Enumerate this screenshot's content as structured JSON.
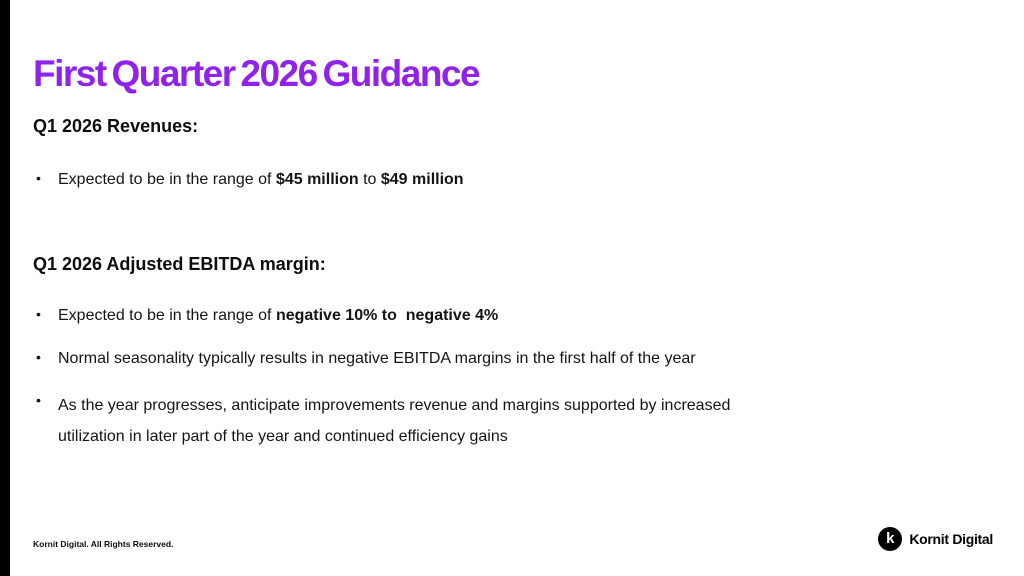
{
  "title": "First Quarter 2026 Guidance",
  "colors": {
    "accent": "#8F23EB",
    "edge_bar": "#000000",
    "text": "#141414"
  },
  "revenues": {
    "heading": "Q1 2026 Revenues:",
    "bullet": {
      "pre": "Expected to be in the range of ",
      "bold_low": "$45 million",
      "mid": " to ",
      "bold_high": "$49 million"
    }
  },
  "ebitda": {
    "heading": "Q1 2026 Adjusted EBITDA margin:",
    "bullet1": {
      "pre": "Expected to be in the range of ",
      "bold": "negative 10% to  negative 4%"
    },
    "bullet2": "Normal seasonality typically results in negative EBITDA margins in the first half of the year",
    "bullet3": "As the year progresses, anticipate improvements revenue and margins supported by increased utilization in later part of the year and continued efficiency gains"
  },
  "footer": {
    "copyright": "Kornit Digital. All Rights Reserved.",
    "logo_letter": "k",
    "logo_text": "Kornit Digital"
  },
  "bullet_glyph": "•"
}
